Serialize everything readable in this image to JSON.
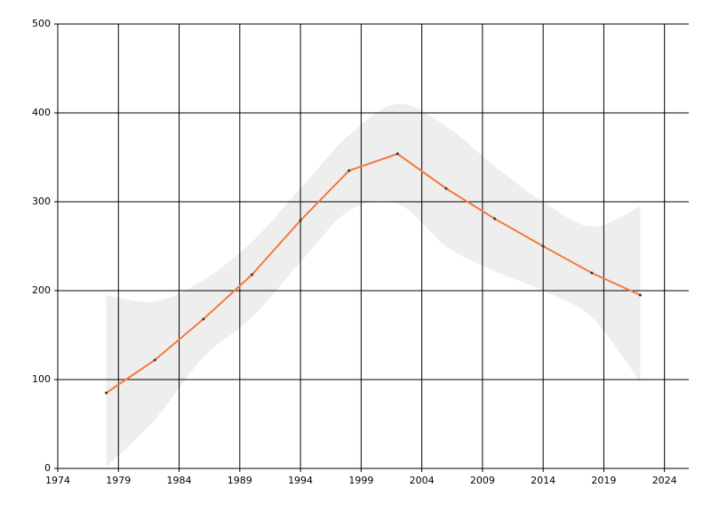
{
  "chart_data": {
    "type": "line",
    "x": [
      1978,
      1982,
      1986,
      1990,
      1994,
      1998,
      2002,
      2006,
      2010,
      2014,
      2018,
      2022
    ],
    "values": [
      85,
      122,
      168,
      218,
      279,
      335,
      354,
      315,
      281,
      250,
      220,
      195
    ],
    "band_lower": [
      2,
      55,
      125,
      170,
      232,
      290,
      298,
      250,
      222,
      200,
      170,
      97
    ],
    "band_upper": [
      195,
      188,
      212,
      255,
      315,
      375,
      410,
      385,
      340,
      300,
      272,
      295
    ],
    "color": "#f47a3a",
    "band_color": "#eeeeee",
    "marker_color": "#333333",
    "xlim": [
      1974,
      2026
    ],
    "xticks": [
      1974,
      1979,
      1984,
      1989,
      1994,
      1999,
      2004,
      2009,
      2014,
      2019,
      2024
    ],
    "ylim": [
      0,
      500
    ],
    "yticks": [
      0,
      100,
      200,
      300,
      400,
      500
    ],
    "grid": true
  }
}
